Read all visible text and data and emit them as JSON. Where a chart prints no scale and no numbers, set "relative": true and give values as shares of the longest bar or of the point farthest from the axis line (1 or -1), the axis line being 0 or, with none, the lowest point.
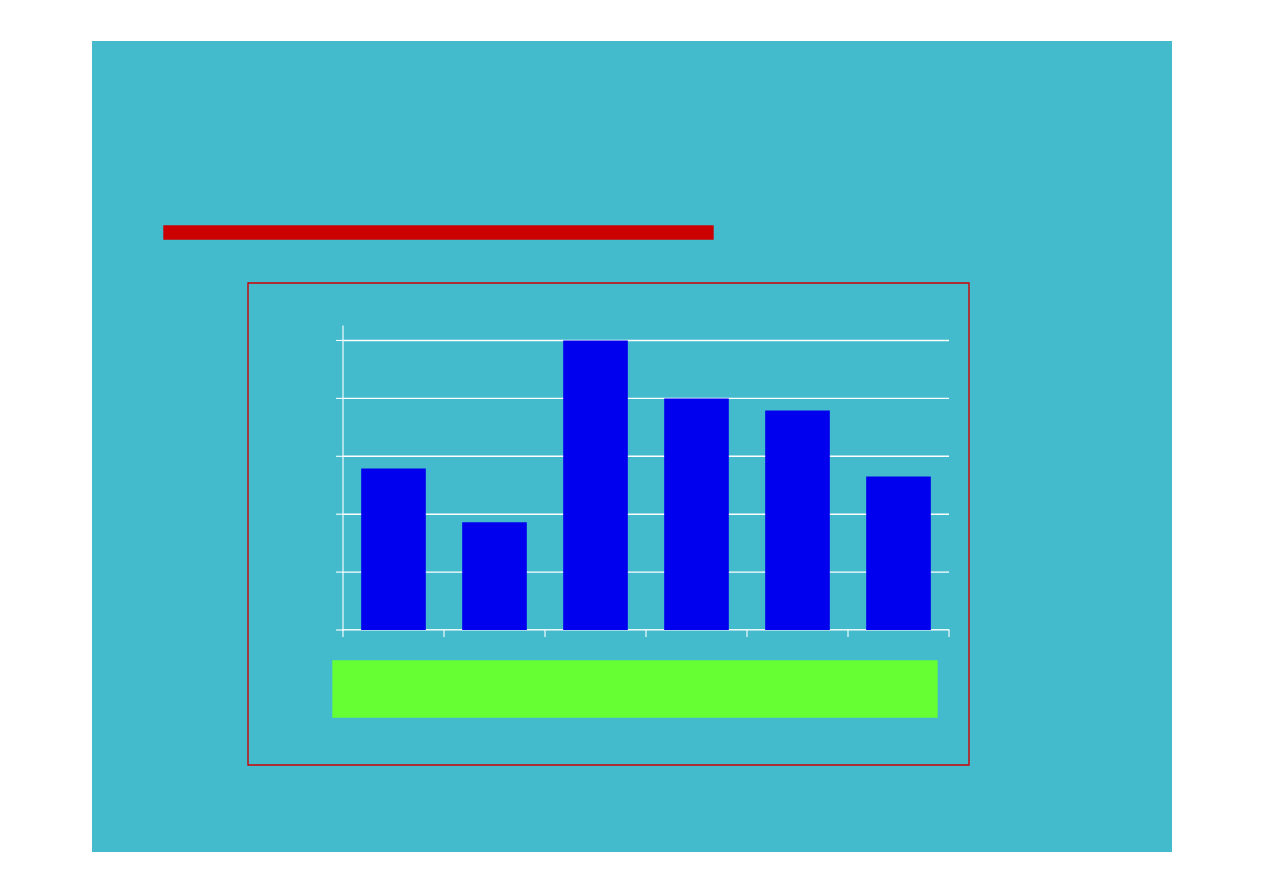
{
  "chart_data": {
    "type": "bar",
    "relative": true,
    "categories": [
      null,
      null,
      null,
      null,
      null,
      null
    ],
    "values": [
      0.558,
      0.372,
      1,
      0.8,
      0.758,
      0.53
    ],
    "color": "#0000ee",
    "grid": "y"
  }
}
